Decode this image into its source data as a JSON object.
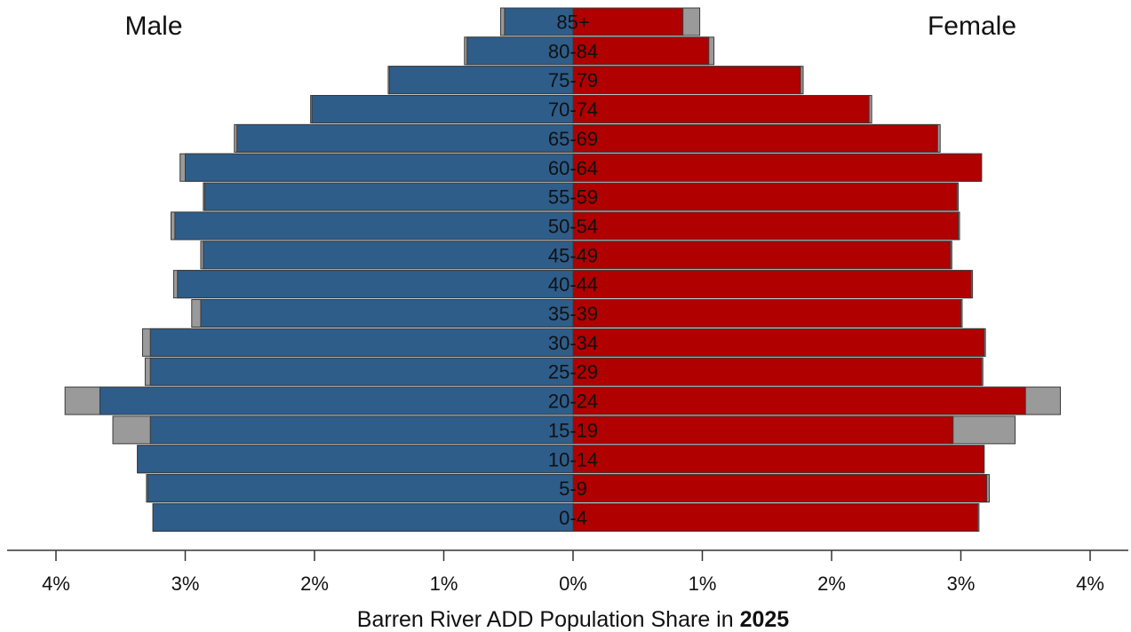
{
  "chart_data": {
    "type": "bar",
    "orientation": "horizontal-pyramid",
    "xlabel_prefix": "Barren River ADD Population Share in ",
    "xlabel_year": "2025",
    "left_title": "Male",
    "right_title": "Female",
    "xlim": [
      -4,
      4
    ],
    "xticks": [
      -4,
      -3,
      -2,
      -1,
      0,
      1,
      2,
      3,
      4
    ],
    "xtick_labels": [
      "4%",
      "3%",
      "2%",
      "1%",
      "0%",
      "1%",
      "2%",
      "3%",
      "4%"
    ],
    "categories": [
      "85+",
      "80-84",
      "75-79",
      "70-74",
      "65-69",
      "60-64",
      "55-59",
      "50-54",
      "45-49",
      "40-44",
      "35-39",
      "30-34",
      "25-29",
      "20-24",
      "15-19",
      "10-14",
      "5-9",
      "0-4"
    ],
    "series": [
      {
        "name": "Male",
        "color": "#2e5d8a",
        "values": [
          0.53,
          0.82,
          1.42,
          2.02,
          2.6,
          3.0,
          2.85,
          3.08,
          2.86,
          3.06,
          2.88,
          3.27,
          3.27,
          3.66,
          3.27,
          3.37,
          3.29,
          3.25
        ]
      },
      {
        "name": "Female",
        "color": "#b00000",
        "values": [
          0.85,
          1.05,
          1.76,
          2.29,
          2.82,
          3.16,
          2.97,
          2.98,
          2.92,
          3.08,
          3.0,
          3.18,
          3.16,
          3.5,
          2.94,
          3.18,
          3.2,
          3.13
        ]
      },
      {
        "name": "Male",
        "color": "#9a9a9a",
        "values": [
          0.56,
          0.84,
          1.43,
          2.03,
          2.62,
          3.04,
          2.86,
          3.11,
          2.88,
          3.09,
          2.95,
          3.33,
          3.31,
          3.93,
          3.56,
          3.37,
          3.3,
          3.25
        ]
      },
      {
        "name": "Female",
        "color": "#9a9a9a",
        "values": [
          0.98,
          1.09,
          1.78,
          2.31,
          2.84,
          3.16,
          2.98,
          2.99,
          2.93,
          3.09,
          3.01,
          3.19,
          3.17,
          3.77,
          3.42,
          3.18,
          3.22,
          3.14
        ]
      }
    ],
    "grid": false,
    "legend": "none"
  }
}
